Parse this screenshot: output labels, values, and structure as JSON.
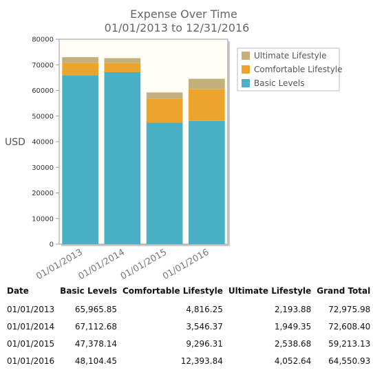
{
  "chart_data": {
    "type": "bar",
    "stacked": true,
    "title": "Expense Over Time",
    "subtitle": "01/01/2013 to 12/31/2016",
    "ylabel": "USD",
    "xlabel": "",
    "categories": [
      "01/01/2013",
      "01/01/2014",
      "01/01/2015",
      "01/01/2016"
    ],
    "ylim": [
      0,
      80000
    ],
    "yticks": [
      0,
      10000,
      20000,
      30000,
      40000,
      50000,
      60000,
      70000,
      80000
    ],
    "grid": false,
    "legend_position": "top-right",
    "series": [
      {
        "name": "Basic Levels",
        "color": "#4ab0c6",
        "values": [
          65965.85,
          67112.68,
          47378.14,
          48104.45
        ]
      },
      {
        "name": "Comfortable Lifestyle",
        "color": "#eba42c",
        "values": [
          4816.25,
          3546.37,
          9296.31,
          12393.84
        ]
      },
      {
        "name": "Ultimate Lifestyle",
        "color": "#c4b07d",
        "values": [
          2193.88,
          1949.35,
          2538.68,
          4052.64
        ]
      }
    ],
    "legend_order": [
      "Ultimate Lifestyle",
      "Comfortable Lifestyle",
      "Basic Levels"
    ],
    "plot_background": "#fffdf5"
  },
  "table": {
    "headers": [
      "Date",
      "Basic Levels",
      "Comfortable Lifestyle",
      "Ultimate Lifestyle",
      "Grand Total"
    ],
    "rows": [
      [
        "01/01/2013",
        "65,965.85",
        "4,816.25",
        "2,193.88",
        "72,975.98"
      ],
      [
        "01/01/2014",
        "67,112.68",
        "3,546.37",
        "1,949.35",
        "72,608.40"
      ],
      [
        "01/01/2015",
        "47,378.14",
        "9,296.31",
        "2,538.68",
        "59,213.13"
      ],
      [
        "01/01/2016",
        "48,104.45",
        "12,393.84",
        "4,052.64",
        "64,550.93"
      ]
    ]
  }
}
